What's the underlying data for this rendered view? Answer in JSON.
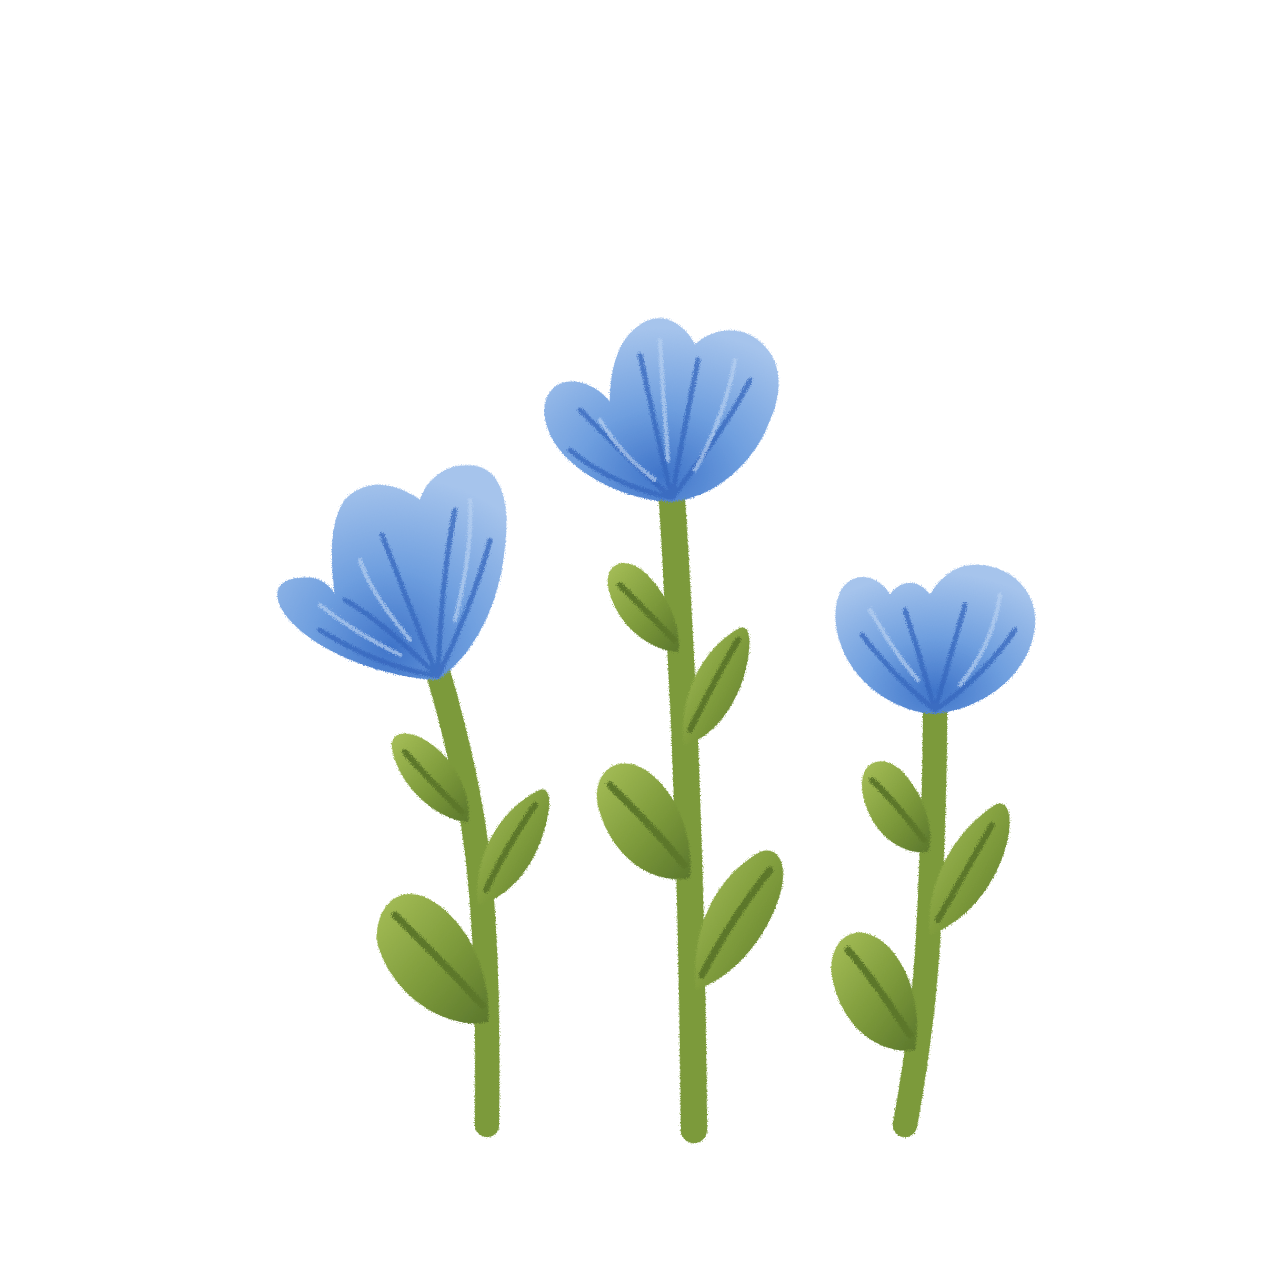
{
  "scene": {
    "flower_count": 3
  },
  "colors": {
    "background": "#ffffff",
    "petal_light": "#9fc0ea",
    "petal_mid": "#6f9fdf",
    "petal_dark": "#3f74c9",
    "petal_vein": "#3566bd",
    "stem": "#7c9a3a",
    "stem_light": "#97b24f",
    "leaf_light": "#9cb54e",
    "leaf_mid": "#7d9a3b",
    "leaf_dark": "#567229"
  },
  "flowers": [
    {
      "name": "left-flower",
      "leaf_count": 3
    },
    {
      "name": "middle-flower",
      "leaf_count": 4
    },
    {
      "name": "right-flower",
      "leaf_count": 3
    }
  ]
}
